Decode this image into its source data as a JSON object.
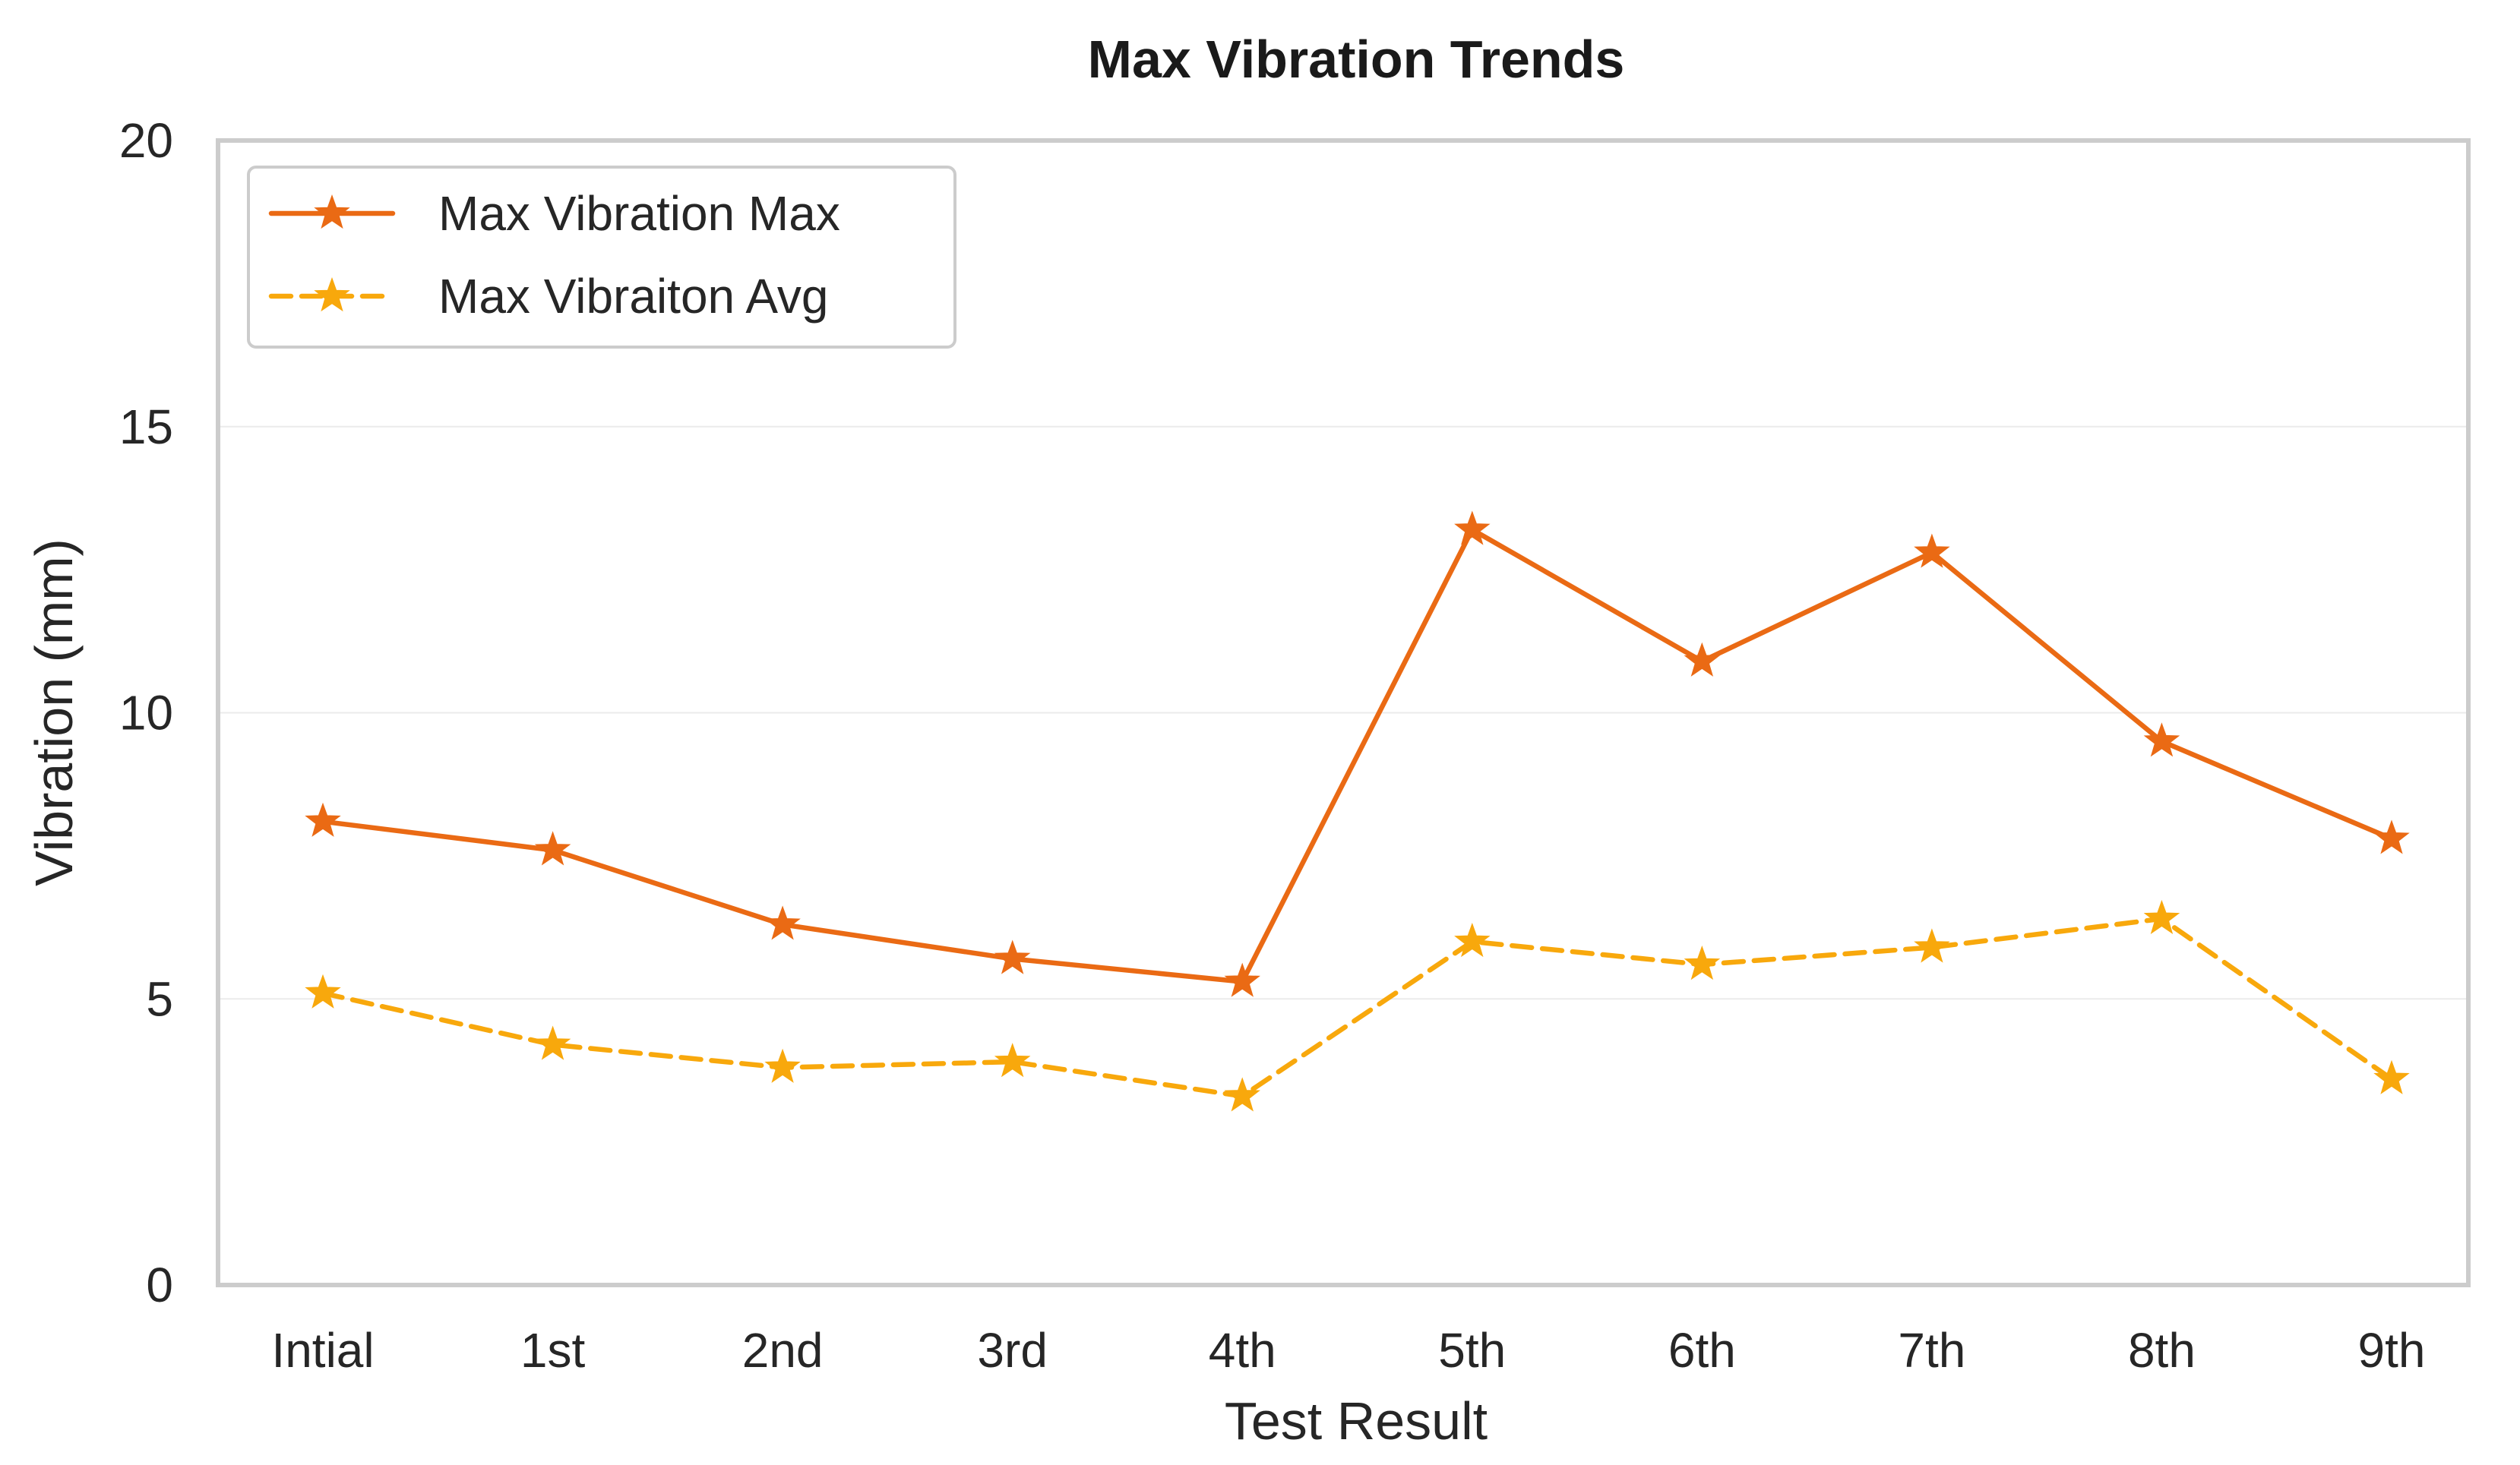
{
  "chart_data": {
    "type": "line",
    "title": "Max Vibration Trends",
    "xlabel": "Test Result",
    "ylabel": "Vibration (mm)",
    "categories": [
      "Intial",
      "1st",
      "2nd",
      "3rd",
      "4th",
      "5th",
      "6th",
      "7th",
      "8th",
      "9th"
    ],
    "ylim": [
      0,
      20
    ],
    "yticks": [
      0,
      5,
      10,
      15,
      20
    ],
    "grid": true,
    "legend_position": "top-left",
    "series": [
      {
        "name": "Max Vibration Max",
        "values": [
          8.1,
          7.6,
          6.3,
          5.7,
          5.3,
          13.2,
          10.9,
          12.8,
          9.5,
          7.8
        ],
        "color": "#ea6a14",
        "line_style": "solid",
        "marker": "star"
      },
      {
        "name": "Max Vibraiton Avg",
        "values": [
          5.1,
          4.2,
          3.8,
          3.9,
          3.3,
          6.0,
          5.6,
          5.9,
          6.4,
          3.6
        ],
        "color": "#f8a80c",
        "line_style": "dashed",
        "marker": "star"
      }
    ]
  }
}
